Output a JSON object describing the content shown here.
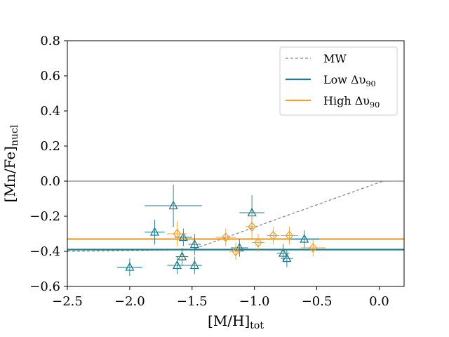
{
  "chart_data": {
    "type": "scatter",
    "title": "",
    "xlabel": {
      "main": "[M/H]",
      "sub": "tot"
    },
    "ylabel": {
      "main": "[Mn/Fe]",
      "sub": "nucl"
    },
    "xlim": [
      -2.5,
      0.2
    ],
    "ylim": [
      -0.6,
      0.8
    ],
    "xticks": [
      -2.5,
      -2.0,
      -1.5,
      -1.0,
      -0.5,
      0.0
    ],
    "xtick_labels": [
      "−2.5",
      "−2.0",
      "−1.5",
      "−1.0",
      "−0.5",
      "0.0"
    ],
    "yticks": [
      -0.6,
      -0.4,
      -0.2,
      0.0,
      0.2,
      0.4,
      0.6,
      0.8
    ],
    "ytick_labels": [
      "−0.6",
      "−0.4",
      "−0.2",
      "0.0",
      "0.2",
      "0.4",
      "0.6",
      "0.8"
    ],
    "grid": false,
    "legend_position": "top-right",
    "legend": [
      {
        "key": "mw",
        "main": "MW",
        "sub": "",
        "color": "#808080",
        "style": "dashed"
      },
      {
        "key": "low",
        "main": "Low Δυ",
        "sub": "90",
        "color": "#1f7a8c",
        "style": "solid"
      },
      {
        "key": "high",
        "main": "High Δυ",
        "sub": "90",
        "color": "#f0a030",
        "style": "solid"
      }
    ],
    "reference_lines": {
      "zero_line": {
        "y": 0.0,
        "color": "#808080"
      },
      "low_mean": {
        "y": -0.39,
        "color": "#1f7a8c"
      },
      "high_mean": {
        "y": -0.33,
        "color": "#f0a030"
      },
      "mw_trend": {
        "points": [
          [
            -2.5,
            -0.4
          ],
          [
            -1.5,
            -0.39
          ],
          [
            0.03,
            0.0
          ]
        ],
        "color": "#808080"
      }
    },
    "series": [
      {
        "name": "Low Δυ90",
        "marker": "triangle",
        "color": "#1f7a8c",
        "points": [
          {
            "x": -2.0,
            "y": -0.49,
            "xerr": 0.1,
            "yerr": 0.05
          },
          {
            "x": -1.8,
            "y": -0.29,
            "xerr": 0.08,
            "yerr": 0.07
          },
          {
            "x": -1.65,
            "y": -0.14,
            "xerr": 0.23,
            "yerr": 0.12
          },
          {
            "x": -1.62,
            "y": -0.48,
            "xerr": 0.08,
            "yerr": 0.05
          },
          {
            "x": -1.58,
            "y": -0.43,
            "xerr": 0.05,
            "yerr": 0.05
          },
          {
            "x": -1.57,
            "y": -0.32,
            "xerr": 0.07,
            "yerr": 0.05
          },
          {
            "x": -1.48,
            "y": -0.36,
            "xerr": 0.05,
            "yerr": 0.06
          },
          {
            "x": -1.48,
            "y": -0.48,
            "xerr": 0.06,
            "yerr": 0.05
          },
          {
            "x": -1.12,
            "y": -0.38,
            "xerr": 0.07,
            "yerr": 0.05
          },
          {
            "x": -1.02,
            "y": -0.18,
            "xerr": 0.1,
            "yerr": 0.1
          },
          {
            "x": -0.77,
            "y": -0.41,
            "xerr": 0.05,
            "yerr": 0.05
          },
          {
            "x": -0.74,
            "y": -0.44,
            "xerr": 0.05,
            "yerr": 0.05
          },
          {
            "x": -0.6,
            "y": -0.33,
            "xerr": 0.12,
            "yerr": 0.05
          }
        ]
      },
      {
        "name": "High Δυ90",
        "marker": "diamond",
        "color": "#f0a030",
        "points": [
          {
            "x": -1.62,
            "y": -0.3,
            "xerr": 0.08,
            "yerr": 0.07
          },
          {
            "x": -1.23,
            "y": -0.32,
            "xerr": 0.08,
            "yerr": 0.05
          },
          {
            "x": -1.15,
            "y": -0.4,
            "xerr": 0.05,
            "yerr": 0.05
          },
          {
            "x": -1.02,
            "y": -0.26,
            "xerr": 0.05,
            "yerr": 0.07
          },
          {
            "x": -0.97,
            "y": -0.35,
            "xerr": 0.05,
            "yerr": 0.05
          },
          {
            "x": -0.85,
            "y": -0.31,
            "xerr": 0.05,
            "yerr": 0.05
          },
          {
            "x": -0.72,
            "y": -0.31,
            "xerr": 0.07,
            "yerr": 0.05
          },
          {
            "x": -0.53,
            "y": -0.38,
            "xerr": 0.1,
            "yerr": 0.05
          }
        ]
      }
    ]
  }
}
